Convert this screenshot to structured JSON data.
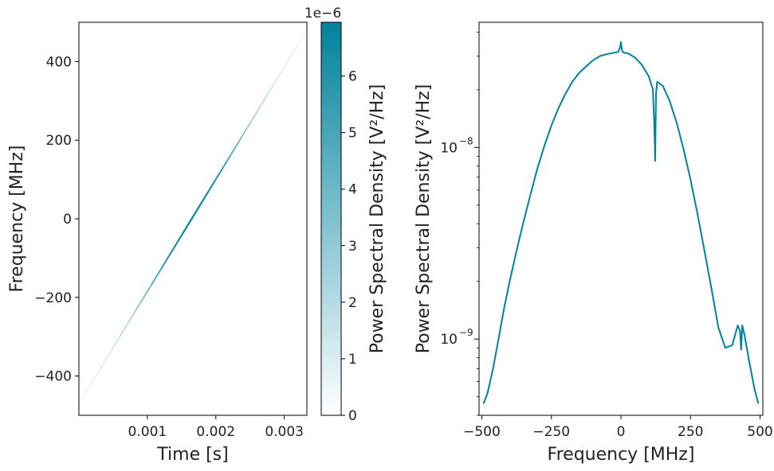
{
  "colors": {
    "accent": "#00829c",
    "axis": "#000000",
    "text": "#222222"
  },
  "chart_data": [
    {
      "type": "heatmap",
      "chart_kind": "spectrogram",
      "xlabel": "Time [s]",
      "ylabel": "Frequency [MHz]",
      "xlim": [
        0,
        0.00333
      ],
      "ylim": [
        -500,
        500
      ],
      "xticks": [
        0.001,
        0.002,
        0.003
      ],
      "xtick_labels": [
        "0.001",
        "0.002",
        "0.003"
      ],
      "yticks": [
        -400,
        -200,
        0,
        200,
        400
      ],
      "ytick_labels": [
        "−400",
        "−200",
        "0",
        "200",
        "400"
      ],
      "ridge": {
        "x": [
          0.0,
          0.00333
        ],
        "y": [
          -470,
          480
        ]
      },
      "colorbar": {
        "label": "Power Spectral Density [V²/Hz]",
        "offset_label": "1e−6",
        "min": 0,
        "max": 6.95,
        "ticks": [
          0,
          1,
          2,
          3,
          4,
          5,
          6
        ],
        "tick_labels": [
          "0",
          "1",
          "2",
          "3",
          "4",
          "5",
          "6"
        ],
        "color_low": "#ffffff",
        "color_high": "#00829c"
      }
    },
    {
      "type": "line",
      "xlabel": "Frequency [MHz]",
      "ylabel": "Power Spectral Density [V²/Hz]",
      "yscale": "log",
      "xlim": [
        -510,
        510
      ],
      "ylim": [
        4e-10,
        4.5e-08
      ],
      "xticks": [
        -500,
        -250,
        0,
        250,
        500
      ],
      "xtick_labels": [
        "−500",
        "−250",
        "0",
        "250",
        "500"
      ],
      "yticks": [
        1e-09,
        1e-08
      ],
      "ytick_base": "10",
      "ytick_exponents": [
        "−9",
        "−8"
      ],
      "series": [
        {
          "color": "#00829c",
          "x": [
            -494,
            -480,
            -460,
            -440,
            -420,
            -400,
            -375,
            -350,
            -325,
            -300,
            -275,
            -250,
            -225,
            -200,
            -175,
            -150,
            -125,
            -100,
            -75,
            -50,
            -25,
            -10,
            -4,
            0,
            4,
            10,
            25,
            50,
            75,
            100,
            115,
            120,
            123,
            126,
            130,
            150,
            175,
            200,
            225,
            250,
            275,
            300,
            325,
            350,
            375,
            400,
            420,
            428,
            432,
            436,
            444,
            460,
            480,
            494
          ],
          "y": [
            4.6e-10,
            5.2e-10,
            7e-10,
            1e-09,
            1.45e-09,
            2e-09,
            2.9e-09,
            4.1e-09,
            5.7e-09,
            7.8e-09,
            1.02e-08,
            1.3e-08,
            1.6e-08,
            1.9e-08,
            2.2e-08,
            2.45e-08,
            2.65e-08,
            2.85e-08,
            3e-08,
            3.07e-08,
            3.12e-08,
            3.15e-08,
            3.3e-08,
            3.55e-08,
            3.2e-08,
            3.12e-08,
            3.1e-08,
            2.95e-08,
            2.7e-08,
            2.35e-08,
            2e-08,
            1.3e-08,
            8.5e-09,
            1.9e-08,
            2.2e-08,
            2.1e-08,
            1.75e-08,
            1.35e-08,
            9.8e-09,
            6.8e-09,
            4.5e-09,
            2.9e-09,
            1.85e-09,
            1.15e-09,
            9e-10,
            9.3e-10,
            1.18e-09,
            1.1e-09,
            8.8e-10,
            1.18e-09,
            1.05e-09,
            7.8e-10,
            5.5e-10,
            4.6e-10
          ]
        }
      ]
    }
  ]
}
